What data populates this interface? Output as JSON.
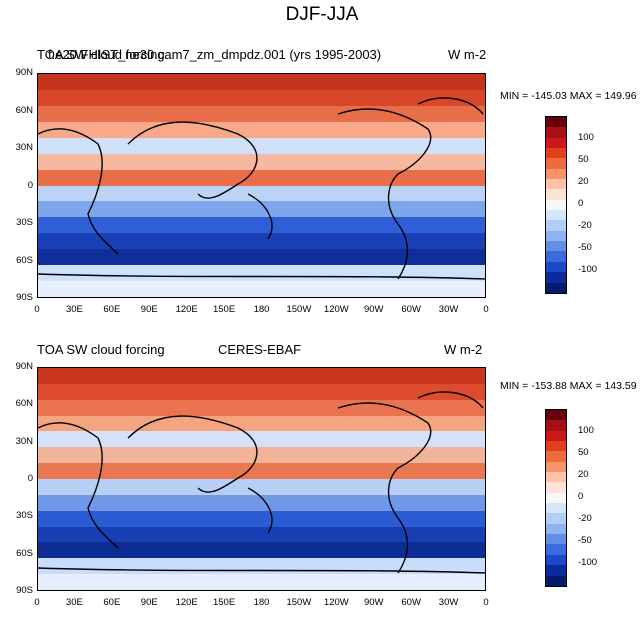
{
  "figure": {
    "title": "DJF-JJA"
  },
  "panels": [
    {
      "left_title": "TOA SW cloud forcing",
      "center_title": "f.e20.FHIST_ne30.cam7_zm_dmpdz.001 (yrs 1995-2003)",
      "right_title": "W m-2",
      "stats": "MIN = -145.03 MAX = 149.96"
    },
    {
      "left_title": "TOA SW cloud forcing",
      "center_title": "CERES-EBAF",
      "right_title": "W m-2",
      "stats": "MIN = -153.88 MAX = 143.59"
    }
  ],
  "axes": {
    "lat_labels": [
      "90N",
      "60N",
      "30N",
      "0",
      "30S",
      "60S",
      "90S"
    ],
    "lon_labels": [
      "0",
      "30E",
      "60E",
      "90E",
      "120E",
      "150E",
      "180",
      "150W",
      "120W",
      "90W",
      "60W",
      "30W",
      "0"
    ]
  },
  "colorbar": {
    "labels": [
      "100",
      "50",
      "20",
      "0",
      "-20",
      "-50",
      "-100"
    ],
    "colors": [
      "#67000d",
      "#a50f15",
      "#cb181d",
      "#e2401d",
      "#ef6b3c",
      "#f6946a",
      "#fcc3a8",
      "#fde3d6",
      "#f7f7f7",
      "#d6e6fa",
      "#b2cdf6",
      "#8eb3f0",
      "#628fe6",
      "#3c6be0",
      "#1a49cc",
      "#0a2a9a",
      "#061a6b"
    ]
  }
}
